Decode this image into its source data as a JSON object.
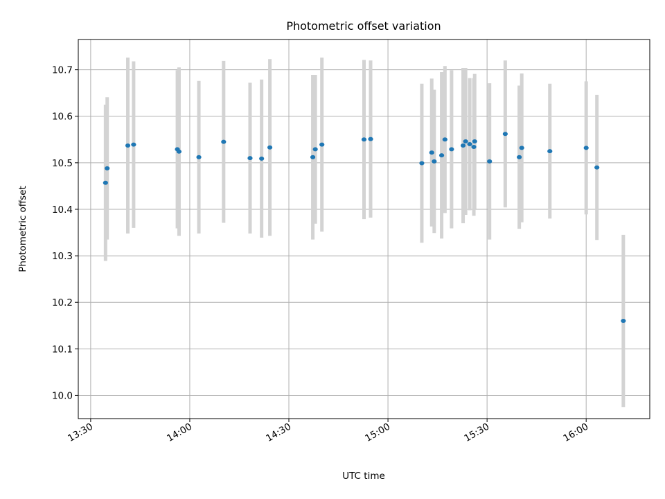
{
  "chart_data": {
    "type": "scatter",
    "title": "Photometric offset variation",
    "xlabel": "UTC time",
    "ylabel": "Photometric offset",
    "x_ticks": [
      "13:30",
      "14:00",
      "14:30",
      "15:00",
      "15:30",
      "16:00"
    ],
    "y_ticks": [
      "10.0",
      "10.1",
      "10.2",
      "10.3",
      "10.4",
      "10.5",
      "10.6",
      "10.7"
    ],
    "xlim": [
      "13:26:15",
      "16:19:15"
    ],
    "ylim": [
      9.95,
      10.765
    ],
    "grid": true,
    "series": [
      {
        "color": "#1f77b4",
        "errorbar_color": "#d3d3d3",
        "points": [
          {
            "t": "13:34:30",
            "y": 10.457,
            "err": 0.168
          },
          {
            "t": "13:35:00",
            "y": 10.488,
            "err": 0.153
          },
          {
            "t": "13:41:15",
            "y": 10.537,
            "err": 0.189
          },
          {
            "t": "13:43:00",
            "y": 10.539,
            "err": 0.179
          },
          {
            "t": "13:56:15",
            "y": 10.529,
            "err": 0.17
          },
          {
            "t": "13:56:45",
            "y": 10.524,
            "err": 0.181
          },
          {
            "t": "14:02:45",
            "y": 10.512,
            "err": 0.164
          },
          {
            "t": "14:10:15",
            "y": 10.545,
            "err": 0.174
          },
          {
            "t": "14:18:15",
            "y": 10.51,
            "err": 0.162
          },
          {
            "t": "14:21:45",
            "y": 10.509,
            "err": 0.17
          },
          {
            "t": "14:24:15",
            "y": 10.533,
            "err": 0.19
          },
          {
            "t": "14:37:15",
            "y": 10.512,
            "err": 0.177
          },
          {
            "t": "14:38:00",
            "y": 10.529,
            "err": 0.16
          },
          {
            "t": "14:40:00",
            "y": 10.539,
            "err": 0.187
          },
          {
            "t": "14:52:45",
            "y": 10.55,
            "err": 0.171
          },
          {
            "t": "14:54:45",
            "y": 10.551,
            "err": 0.169
          },
          {
            "t": "15:10:15",
            "y": 10.499,
            "err": 0.171
          },
          {
            "t": "15:13:15",
            "y": 10.522,
            "err": 0.159
          },
          {
            "t": "15:14:00",
            "y": 10.503,
            "err": 0.154
          },
          {
            "t": "15:16:15",
            "y": 10.516,
            "err": 0.179
          },
          {
            "t": "15:17:15",
            "y": 10.55,
            "err": 0.158
          },
          {
            "t": "15:19:15",
            "y": 10.529,
            "err": 0.17
          },
          {
            "t": "15:22:45",
            "y": 10.537,
            "err": 0.167
          },
          {
            "t": "15:23:30",
            "y": 10.546,
            "err": 0.158
          },
          {
            "t": "15:24:45",
            "y": 10.54,
            "err": 0.142
          },
          {
            "t": "15:26:00",
            "y": 10.534,
            "err": 0.148
          },
          {
            "t": "15:26:15",
            "y": 10.546,
            "err": 0.145
          },
          {
            "t": "15:30:45",
            "y": 10.503,
            "err": 0.168
          },
          {
            "t": "15:35:30",
            "y": 10.562,
            "err": 0.158
          },
          {
            "t": "15:39:45",
            "y": 10.512,
            "err": 0.154
          },
          {
            "t": "15:40:30",
            "y": 10.532,
            "err": 0.16
          },
          {
            "t": "15:49:00",
            "y": 10.525,
            "err": 0.145
          },
          {
            "t": "16:00:00",
            "y": 10.532,
            "err": 0.143
          },
          {
            "t": "16:03:15",
            "y": 10.49,
            "err": 0.156
          },
          {
            "t": "16:11:15",
            "y": 10.16,
            "err": 0.185
          }
        ]
      }
    ]
  }
}
